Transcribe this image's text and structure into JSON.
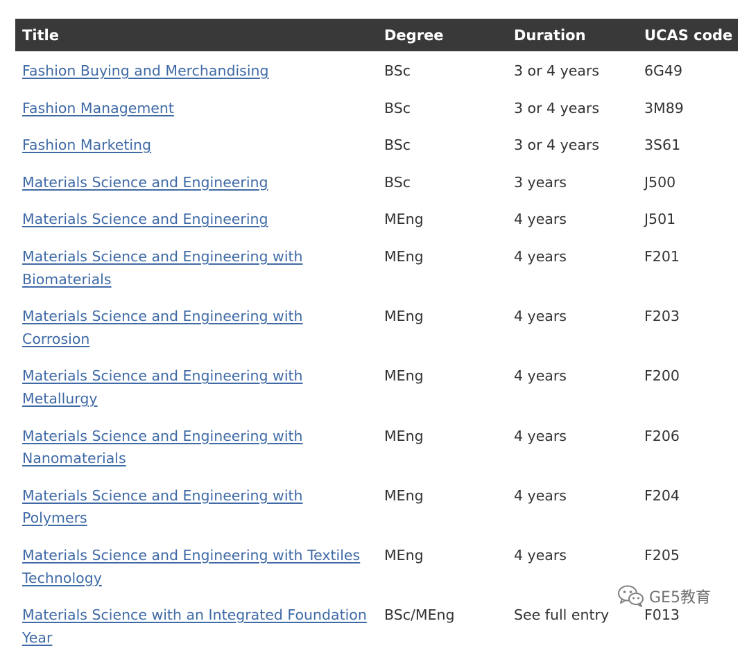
{
  "table": {
    "headers": {
      "title": "Title",
      "degree": "Degree",
      "duration": "Duration",
      "ucas": "UCAS code"
    },
    "rows": [
      {
        "title": "Fashion Buying and Merchandising",
        "degree": "BSc",
        "duration": "3 or 4 years",
        "ucas": "6G49"
      },
      {
        "title": "Fashion Management",
        "degree": "BSc",
        "duration": "3 or 4 years",
        "ucas": "3M89"
      },
      {
        "title": "Fashion Marketing",
        "degree": "BSc",
        "duration": "3 or 4 years",
        "ucas": "3S61"
      },
      {
        "title": "Materials Science and Engineering",
        "degree": "BSc",
        "duration": "3 years",
        "ucas": "J500"
      },
      {
        "title": "Materials Science and Engineering",
        "degree": "MEng",
        "duration": "4 years",
        "ucas": "J501"
      },
      {
        "title": "Materials Science and Engineering with Biomaterials",
        "degree": "MEng",
        "duration": "4 years",
        "ucas": "F201"
      },
      {
        "title": "Materials Science and Engineering with Corrosion",
        "degree": "MEng",
        "duration": "4 years",
        "ucas": "F203"
      },
      {
        "title": "Materials Science and Engineering with Metallurgy",
        "degree": "MEng",
        "duration": "4 years",
        "ucas": "F200"
      },
      {
        "title": "Materials Science and Engineering with Nanomaterials",
        "degree": "MEng",
        "duration": "4 years",
        "ucas": "F206"
      },
      {
        "title": "Materials Science and Engineering with Polymers",
        "degree": "MEng",
        "duration": "4 years",
        "ucas": "F204"
      },
      {
        "title": "Materials Science and Engineering with Textiles Technology",
        "degree": "MEng",
        "duration": "4 years",
        "ucas": "F205"
      },
      {
        "title": "Materials Science with an Integrated Foundation Year",
        "degree": "BSc/MEng",
        "duration": "See full entry",
        "ucas": "F013"
      }
    ]
  },
  "watermark": {
    "text": "GE5教育",
    "icon": "wechat-icon"
  },
  "colors": {
    "header_bg": "#393939",
    "header_text": "#ffffff",
    "link": "#3f6aa6",
    "body_text": "#333333"
  }
}
